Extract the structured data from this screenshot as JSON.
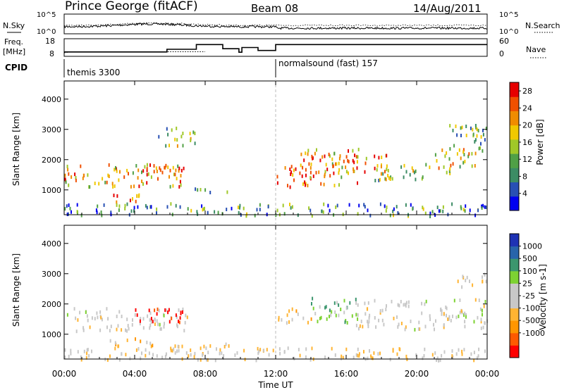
{
  "header": {
    "station": "Prince George (fitACF)",
    "beam": "Beam 08",
    "date": "14/Aug/2011"
  },
  "noise_panel": {
    "left_label": "N.Sky",
    "right_label": "N.Search",
    "left_ticks": [
      "10^5",
      "10^0"
    ],
    "right_ticks": [
      "10^5",
      "10^0"
    ]
  },
  "freq_panel": {
    "left_label_1": "Freq.",
    "left_label_2": "[MHz]",
    "right_label": "Nave",
    "left_ticks": [
      "18",
      "8"
    ],
    "right_ticks": [
      "60",
      "0"
    ],
    "left_ylim": [
      8,
      18
    ],
    "right_ylim": [
      0,
      60
    ],
    "freq_x": [
      0,
      20,
      480
    ],
    "freq_values": [
      10,
      10.6,
      10.6
    ],
    "nave_x": [
      0,
      340,
      350,
      450,
      540,
      595,
      605,
      660,
      720
    ],
    "nave_values": [
      15,
      15,
      24,
      40,
      26,
      14,
      30,
      20,
      40
    ]
  },
  "cpid": {
    "label": "CPID",
    "programs": [
      {
        "name": "themis 3300",
        "start_minutes": 0
      },
      {
        "name": "normalsound (fast) 157",
        "start_minutes": 720
      }
    ]
  },
  "x_axis": {
    "label": "Time UT",
    "ticks": [
      "00:00",
      "04:00",
      "08:00",
      "12:00",
      "16:00",
      "20:00",
      "00:00"
    ],
    "range_minutes": [
      0,
      1440
    ]
  },
  "chart_data": [
    {
      "type": "heatmap",
      "ylabel": "Slant Range [km]",
      "yticks": [
        "1000",
        "2000",
        "3000",
        "4000"
      ],
      "ylim": [
        180,
        4600
      ],
      "colorbar": {
        "label": "Power [dB]",
        "ticks": [
          "4",
          "8",
          "12",
          "16",
          "20",
          "24",
          "28"
        ],
        "range": [
          0,
          30
        ]
      },
      "patches": [
        {
          "t": [
            0,
            420
          ],
          "range": [
            1150,
            1900
          ],
          "level": 0.7
        },
        {
          "t": [
            160,
            300
          ],
          "range": [
            600,
            900
          ],
          "level": 0.85
        },
        {
          "t": [
            250,
            420
          ],
          "range": [
            1450,
            1800
          ],
          "level": 0.75
        },
        {
          "t": [
            320,
            450
          ],
          "range": [
            2500,
            3100
          ],
          "level": 0.4
        },
        {
          "t": [
            440,
            560
          ],
          "range": [
            950,
            1150
          ],
          "level": 0.4
        },
        {
          "t": [
            720,
            840
          ],
          "range": [
            1100,
            1900
          ],
          "level": 0.9
        },
        {
          "t": [
            800,
            1000
          ],
          "range": [
            1200,
            2400
          ],
          "level": 0.7
        },
        {
          "t": [
            900,
            1100
          ],
          "range": [
            1600,
            2200
          ],
          "level": 0.75
        },
        {
          "t": [
            1050,
            1250
          ],
          "range": [
            1300,
            1900
          ],
          "level": 0.5
        },
        {
          "t": [
            1260,
            1400
          ],
          "range": [
            1600,
            2400
          ],
          "level": 0.6
        },
        {
          "t": [
            1300,
            1440
          ],
          "range": [
            2200,
            3200
          ],
          "level": 0.4
        },
        {
          "t": [
            0,
            1440
          ],
          "range": [
            180,
            600
          ],
          "level": 0.3
        }
      ]
    },
    {
      "type": "heatmap",
      "ylabel": "Slant Range [km]",
      "yticks": [
        "1000",
        "2000",
        "3000",
        "4000"
      ],
      "ylim": [
        180,
        4600
      ],
      "colorbar": {
        "label": "Velocity [m s-1]",
        "ticks": [
          "1000",
          "500",
          "100",
          "25",
          "-25",
          "-100",
          "-500",
          "-1000"
        ],
        "range": [
          -1000,
          1000
        ]
      },
      "patches": [
        {
          "t": [
            0,
            420
          ],
          "range": [
            1150,
            1900
          ],
          "value": 0
        },
        {
          "t": [
            150,
            300
          ],
          "range": [
            500,
            900
          ],
          "value": -200
        },
        {
          "t": [
            240,
            420
          ],
          "range": [
            1400,
            1900
          ],
          "value": -600
        },
        {
          "t": [
            360,
            560
          ],
          "range": [
            500,
            800
          ],
          "value": -150
        },
        {
          "t": [
            720,
            840
          ],
          "range": [
            1400,
            1900
          ],
          "value": -150
        },
        {
          "t": [
            840,
            1000
          ],
          "range": [
            1400,
            2300
          ],
          "value": 200
        },
        {
          "t": [
            980,
            1440
          ],
          "range": [
            1200,
            2200
          ],
          "value": 0
        },
        {
          "t": [
            1320,
            1440
          ],
          "range": [
            2600,
            3100
          ],
          "value": -50
        },
        {
          "t": [
            0,
            1440
          ],
          "range": [
            180,
            600
          ],
          "value": -80
        }
      ]
    }
  ],
  "colors": {
    "power_scale": [
      "#0000f0",
      "#2850b4",
      "#3c8c64",
      "#50a046",
      "#a0c828",
      "#f0c800",
      "#f08c00",
      "#f05000",
      "#e60000"
    ],
    "velocity_scale": [
      "#ff0000",
      "#ff5a00",
      "#ff9600",
      "#ffb432",
      "#c8c8c8",
      "#c8c8c8",
      "#7dd232",
      "#3c966e",
      "#2864aa",
      "#1e32b4"
    ]
  }
}
